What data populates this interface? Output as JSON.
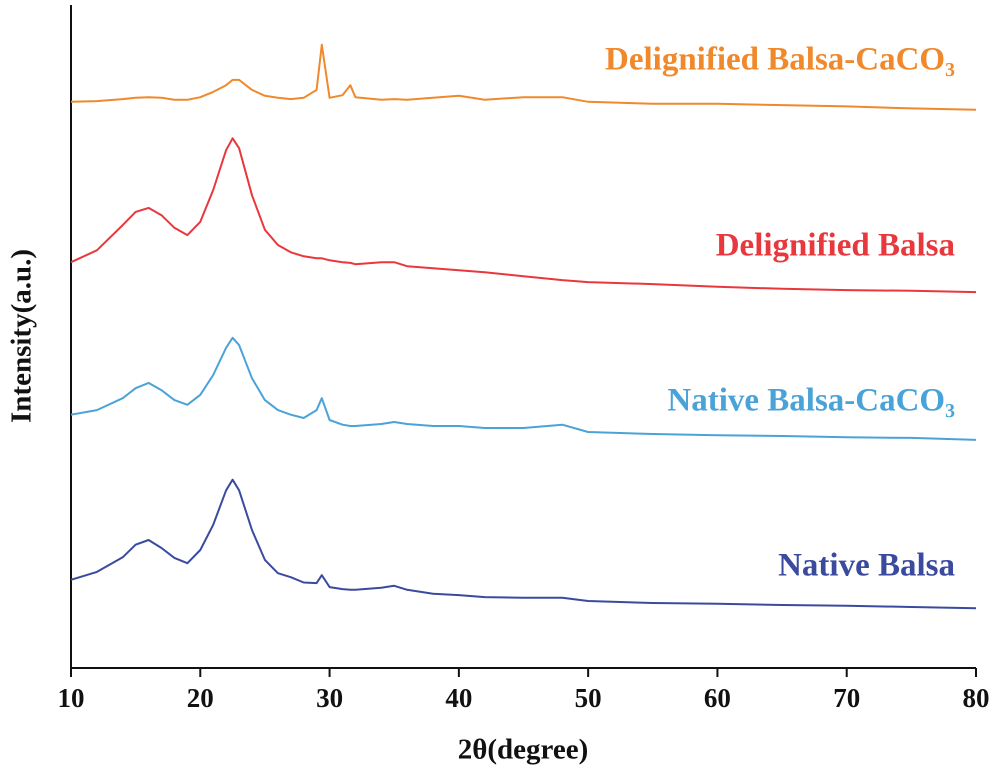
{
  "chart_data": {
    "type": "line",
    "xlabel": "2θ(degree)",
    "ylabel": "Intensity(a.u.)",
    "x": [
      10,
      12,
      14,
      15,
      16,
      17,
      18,
      19,
      20,
      21,
      22,
      22.5,
      23,
      24,
      25,
      26,
      27,
      28,
      29,
      29.4,
      30,
      31,
      31.6,
      32,
      34,
      35,
      36,
      38,
      40,
      42,
      45,
      48,
      50,
      55,
      60,
      65,
      70,
      75,
      80
    ],
    "series": [
      {
        "name": "Native Balsa",
        "color": "#3a4a9f",
        "values": [
          13.3,
          14.5,
          16.7,
          18.6,
          19.3,
          18.1,
          16.6,
          15.8,
          17.8,
          21.6,
          26.8,
          28.4,
          26.8,
          20.8,
          16.3,
          14.3,
          13.7,
          12.9,
          12.8,
          14.0,
          12.2,
          11.9,
          11.8,
          11.8,
          12.1,
          12.4,
          11.8,
          11.2,
          11.0,
          10.7,
          10.6,
          10.6,
          10.1,
          9.8,
          9.7,
          9.5,
          9.4,
          9.2,
          9.0
        ]
      },
      {
        "name": "Native Balsa-CaCO₃",
        "color": "#4aa3d8",
        "values": [
          38.2,
          38.9,
          40.7,
          42.2,
          43.0,
          41.9,
          40.4,
          39.7,
          41.2,
          44.2,
          48.3,
          49.8,
          48.7,
          43.7,
          40.4,
          38.9,
          38.2,
          37.7,
          38.9,
          40.7,
          37.4,
          36.7,
          36.5,
          36.5,
          36.8,
          37.1,
          36.8,
          36.5,
          36.5,
          36.2,
          36.2,
          36.7,
          35.6,
          35.3,
          35.1,
          35.0,
          34.8,
          34.7,
          34.4
        ]
      },
      {
        "name": "Delignified Balsa",
        "color": "#e8383d",
        "values": [
          61.2,
          63.0,
          66.8,
          68.8,
          69.4,
          68.3,
          66.4,
          65.3,
          67.3,
          72.1,
          78.1,
          79.9,
          78.4,
          71.3,
          66.1,
          63.8,
          62.7,
          62.1,
          61.8,
          61.8,
          61.5,
          61.2,
          61.1,
          60.9,
          61.2,
          61.2,
          60.6,
          60.3,
          60.0,
          59.7,
          59.1,
          58.5,
          58.2,
          57.9,
          57.5,
          57.2,
          57.0,
          56.9,
          56.7
        ]
      },
      {
        "name": "Delignified Balsa-CaCO₃",
        "color": "#f0892b",
        "values": [
          85.4,
          85.5,
          85.8,
          86.0,
          86.1,
          86.0,
          85.7,
          85.7,
          86.1,
          86.9,
          87.9,
          88.7,
          88.7,
          87.2,
          86.3,
          86.0,
          85.8,
          86.0,
          87.2,
          94.0,
          86.0,
          86.4,
          87.9,
          86.1,
          85.7,
          85.8,
          85.7,
          86.0,
          86.3,
          85.7,
          86.1,
          86.1,
          85.4,
          85.1,
          85.1,
          84.9,
          84.7,
          84.4,
          84.2
        ]
      }
    ],
    "xlim": [
      10,
      80
    ],
    "xticks": [
      10,
      20,
      30,
      40,
      50,
      60,
      70,
      80
    ],
    "ylim": [
      0,
      100
    ]
  }
}
